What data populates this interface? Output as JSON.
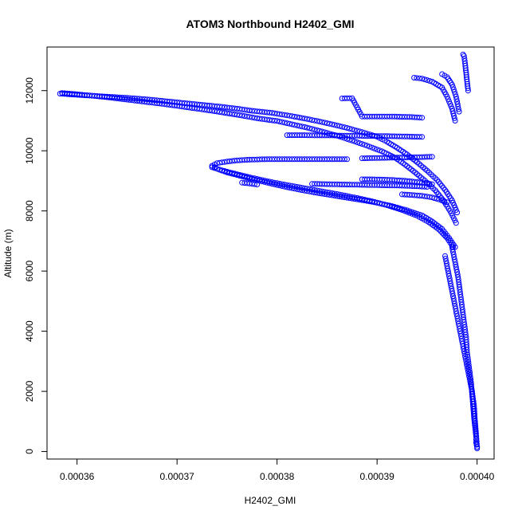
{
  "chart_data": {
    "type": "scatter",
    "title": "ATOM3 Northbound H2402_GMI",
    "xlabel": "H2402_GMI",
    "ylabel": "Altitude (m)",
    "xlim": [
      0.000357,
      0.0004017
    ],
    "ylim": [
      -250,
      13450
    ],
    "xticks": [
      0.00036,
      0.00037,
      0.00038,
      0.00039,
      0.0004
    ],
    "xtick_labels": [
      "0.00036",
      "0.00037",
      "0.00038",
      "0.00039",
      "0.00040"
    ],
    "yticks": [
      0,
      2000,
      4000,
      6000,
      8000,
      10000,
      12000
    ],
    "ytick_labels": [
      "0",
      "2000",
      "4000",
      "6000",
      "8000",
      "10000",
      "12000"
    ],
    "marker": "open-circle",
    "color": "#0000ff",
    "grid": false,
    "series": [
      {
        "x": [
          0.0003583,
          0.0003595,
          0.000361,
          0.0003625,
          0.000364,
          0.0003655,
          0.000367,
          0.0003685,
          0.00037,
          0.0003715,
          0.000373,
          0.0003745,
          0.000376,
          0.0003775,
          0.0003795,
          0.000381,
          0.0003825,
          0.000384,
          0.0003855,
          0.000387,
          0.0003885,
          0.00039,
          0.000391,
          0.000392,
          0.000393,
          0.000394,
          0.000395,
          0.000396,
          0.0003968,
          0.0003975,
          0.000398
        ],
        "y": [
          11900,
          11870,
          11840,
          11810,
          11780,
          11750,
          11710,
          11660,
          11610,
          11560,
          11510,
          11460,
          11400,
          11330,
          11260,
          11180,
          11090,
          10990,
          10880,
          10760,
          10620,
          10470,
          10300,
          10100,
          9880,
          9620,
          9340,
          9030,
          8700,
          8350,
          7950
        ]
      },
      {
        "x": [
          0.0003585,
          0.00036,
          0.0003615,
          0.000363,
          0.0003645,
          0.000366,
          0.0003675,
          0.000369,
          0.0003705,
          0.000372,
          0.0003735,
          0.000375,
          0.0003765,
          0.000378,
          0.00038,
          0.0003815,
          0.000383,
          0.0003845,
          0.000386,
          0.0003875,
          0.000389,
          0.0003905,
          0.0003918,
          0.0003928,
          0.0003938,
          0.0003948,
          0.0003958,
          0.0003966,
          0.0003973,
          0.0003979
        ],
        "y": [
          11920,
          11880,
          11830,
          11780,
          11720,
          11660,
          11600,
          11540,
          11470,
          11400,
          11330,
          11250,
          11170,
          11080,
          10990,
          10880,
          10770,
          10640,
          10500,
          10340,
          10170,
          9980,
          9770,
          9540,
          9280,
          9000,
          8690,
          8360,
          8000,
          7600
        ]
      },
      {
        "x": [
          0.000387,
          0.0003855,
          0.0003835,
          0.0003815,
          0.00038,
          0.000379,
          0.000378,
          0.000377,
          0.000376,
          0.000375,
          0.000374,
          0.0003735,
          0.000374,
          0.000375,
          0.0003765,
          0.000378,
          0.0003795,
          0.000381,
          0.0003825,
          0.000384,
          0.0003855,
          0.000387,
          0.0003885,
          0.00039,
          0.0003915,
          0.000393,
          0.0003945,
          0.0003955,
          0.0003965,
          0.0003972,
          0.0003978
        ],
        "y": [
          9720,
          9720,
          9720,
          9720,
          9720,
          9720,
          9710,
          9700,
          9680,
          9640,
          9590,
          9500,
          9400,
          9280,
          9150,
          9020,
          8900,
          8790,
          8690,
          8600,
          8520,
          8440,
          8360,
          8270,
          8160,
          8020,
          7850,
          7650,
          7400,
          7100,
          6800
        ]
      },
      {
        "x": [
          0.0003735,
          0.0003745,
          0.000376,
          0.0003775,
          0.000379,
          0.0003805,
          0.000382,
          0.0003835,
          0.000385,
          0.0003865,
          0.000388,
          0.0003895,
          0.000391,
          0.0003925,
          0.000394,
          0.0003952,
          0.0003962,
          0.000397,
          0.0003976
        ],
        "y": [
          9450,
          9350,
          9220,
          9100,
          8990,
          8890,
          8800,
          8710,
          8620,
          8530,
          8430,
          8320,
          8190,
          8030,
          7840,
          7620,
          7380,
          7100,
          6800
        ]
      },
      {
        "x": [
          0.000378,
          0.0003775,
          0.000377,
          0.0003765
        ],
        "y": [
          8880,
          8900,
          8920,
          8940
        ]
      },
      {
        "x": [
          0.000381,
          0.0003825,
          0.000384,
          0.0003855,
          0.000387,
          0.000388,
          0.000389,
          0.0003905,
          0.000392,
          0.0003935,
          0.0003945
        ],
        "y": [
          10520,
          10520,
          10510,
          10510,
          10500,
          10500,
          10490,
          10490,
          10480,
          10470,
          10460
        ]
      },
      {
        "x": [
          0.0003835,
          0.000385,
          0.0003865,
          0.000388,
          0.0003895,
          0.000391,
          0.0003925,
          0.000394,
          0.000395
        ],
        "y": [
          8900,
          8890,
          8880,
          8870,
          8860,
          8850,
          8840,
          8820,
          8800
        ]
      },
      {
        "x": [
          0.0003865,
          0.0003875,
          0.0003885,
          0.0003895,
          0.0003905,
          0.0003915,
          0.0003925,
          0.0003935,
          0.0003945
        ],
        "y": [
          11740,
          11750,
          11140,
          11140,
          11140,
          11140,
          11130,
          11120,
          11100
        ]
      },
      {
        "x": [
          0.0003885,
          0.00039,
          0.0003915,
          0.000393,
          0.0003945,
          0.0003955
        ],
        "y": [
          9750,
          9760,
          9770,
          9780,
          9790,
          9800
        ]
      },
      {
        "x": [
          0.0003885,
          0.0003895,
          0.0003905,
          0.0003915,
          0.0003925,
          0.0003935,
          0.0003945,
          0.0003955
        ],
        "y": [
          9050,
          9050,
          9040,
          9030,
          9010,
          8980,
          8940,
          8890
        ]
      },
      {
        "x": [
          0.0003925,
          0.0003935,
          0.0003945,
          0.0003955,
          0.0003962,
          0.000397
        ],
        "y": [
          8550,
          8530,
          8500,
          8450,
          8380,
          8290
        ]
      },
      {
        "x": [
          0.0003937,
          0.0003945,
          0.0003955,
          0.0003965,
          0.000397,
          0.0003975,
          0.0003978
        ],
        "y": [
          12430,
          12400,
          12300,
          12100,
          11800,
          11400,
          11000
        ]
      },
      {
        "x": [
          0.0003965,
          0.000397,
          0.0003975,
          0.0003979,
          0.0003982
        ],
        "y": [
          12550,
          12450,
          12200,
          11800,
          11300
        ]
      },
      {
        "x": [
          0.0003986,
          0.0003987,
          0.0003988,
          0.0003989,
          0.000399,
          0.0003991
        ],
        "y": [
          13200,
          13150,
          12900,
          12600,
          12300,
          12000
        ]
      },
      {
        "x": [
          0.0003975,
          0.0003978,
          0.0003981,
          0.0003983,
          0.0003985,
          0.0003987,
          0.0003989,
          0.000399,
          0.0003992,
          0.0003994,
          0.0003995,
          0.0003996,
          0.0003997,
          0.0003998,
          0.0003999,
          0.0003999,
          0.0004,
          0.0004
        ],
        "y": [
          6800,
          6300,
          5800,
          5300,
          4800,
          4300,
          3800,
          3300,
          2800,
          2300,
          1900,
          1500,
          1100,
          800,
          500,
          300,
          150,
          100
        ]
      },
      {
        "x": [
          0.0003968,
          0.0003971,
          0.0003974,
          0.0003977,
          0.000398,
          0.0003983,
          0.0003986,
          0.0003989,
          0.0003992,
          0.0003995,
          0.0003997,
          0.0003998,
          0.0003999,
          0.0004
        ],
        "y": [
          6500,
          6000,
          5500,
          5000,
          4500,
          4000,
          3500,
          3000,
          2500,
          2000,
          1500,
          1000,
          600,
          150
        ]
      }
    ]
  }
}
